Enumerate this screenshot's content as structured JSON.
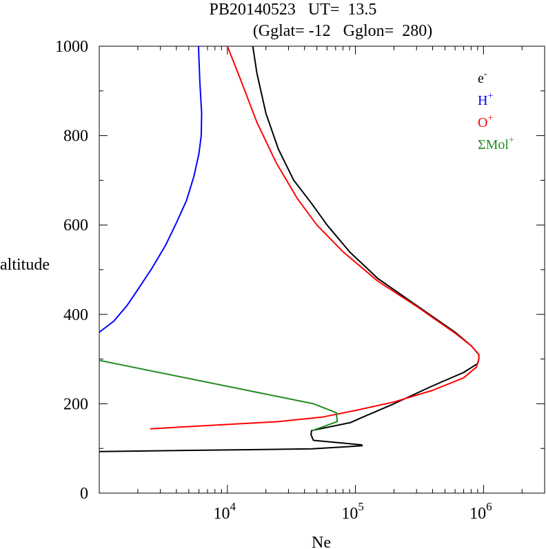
{
  "chart_data": {
    "type": "line",
    "title": "PB20140523   UT=  13.5",
    "subtitle": "(Gglat= -12   Gglon=  280)",
    "xlabel": "Ne",
    "ylabel": "altitude",
    "x_scale": "log",
    "xlim": [
      1000,
      3000000
    ],
    "ylim": [
      0,
      1000
    ],
    "x_ticks": [
      {
        "value": 10000,
        "base": "10",
        "exp": "4"
      },
      {
        "value": 100000,
        "base": "10",
        "exp": "5"
      },
      {
        "value": 1000000,
        "base": "10",
        "exp": "6"
      }
    ],
    "y_ticks": [
      {
        "value": 0,
        "label": "0"
      },
      {
        "value": 200,
        "label": "200"
      },
      {
        "value": 400,
        "label": "400"
      },
      {
        "value": 600,
        "label": "600"
      },
      {
        "value": 800,
        "label": "800"
      },
      {
        "value": 1000,
        "label": "1000"
      }
    ],
    "y_minor_step": 100,
    "grid": false,
    "legend_position": "top-right",
    "series": [
      {
        "label_base": "e",
        "label_sup": "-",
        "color": "#000000",
        "points": [
          [
            1000,
            93
          ],
          [
            46000,
            99
          ],
          [
            113000,
            106
          ],
          [
            112000,
            108
          ],
          [
            47000,
            118
          ],
          [
            45000,
            131
          ],
          [
            45500,
            140
          ],
          [
            92000,
            158
          ],
          [
            110000,
            168
          ],
          [
            200000,
            200
          ],
          [
            400000,
            240
          ],
          [
            700000,
            270
          ],
          [
            900000,
            290
          ],
          [
            920000,
            300
          ],
          [
            920000,
            310
          ],
          [
            800000,
            330
          ],
          [
            600000,
            360
          ],
          [
            300000,
            420
          ],
          [
            150000,
            480
          ],
          [
            90000,
            540
          ],
          [
            60000,
            600
          ],
          [
            45000,
            650
          ],
          [
            33000,
            700
          ],
          [
            25000,
            770
          ],
          [
            20000,
            850
          ],
          [
            17000,
            940
          ],
          [
            15800,
            1000
          ]
        ]
      },
      {
        "label_base": "H",
        "label_sup": "+",
        "color": "#0000ff",
        "points": [
          [
            1000,
            360
          ],
          [
            1300,
            385
          ],
          [
            1650,
            420
          ],
          [
            2050,
            460
          ],
          [
            2600,
            505
          ],
          [
            3300,
            555
          ],
          [
            4000,
            605
          ],
          [
            4800,
            655
          ],
          [
            5500,
            710
          ],
          [
            6000,
            760
          ],
          [
            6250,
            800
          ],
          [
            6300,
            850
          ],
          [
            6100,
            920
          ],
          [
            5950,
            1000
          ]
        ]
      },
      {
        "label_base": "O",
        "label_sup": "+",
        "color": "#ff0000",
        "points": [
          [
            2500,
            144
          ],
          [
            25000,
            160
          ],
          [
            55000,
            170
          ],
          [
            75000,
            178
          ],
          [
            100000,
            185
          ],
          [
            200000,
            204
          ],
          [
            400000,
            230
          ],
          [
            700000,
            258
          ],
          [
            880000,
            282
          ],
          [
            920000,
            300
          ],
          [
            920000,
            310
          ],
          [
            800000,
            330
          ],
          [
            600000,
            358
          ],
          [
            300000,
            418
          ],
          [
            150000,
            474
          ],
          [
            80000,
            540
          ],
          [
            50000,
            600
          ],
          [
            35000,
            660
          ],
          [
            24000,
            740
          ],
          [
            17000,
            830
          ],
          [
            12500,
            930
          ],
          [
            10000,
            1000
          ]
        ]
      },
      {
        "label_base": "ΣMol",
        "label_sup": "+",
        "color": "#228b22",
        "points": [
          [
            1000,
            297
          ],
          [
            47000,
            200
          ],
          [
            71000,
            180
          ],
          [
            72000,
            160
          ],
          [
            46000,
            140
          ]
        ]
      }
    ]
  }
}
